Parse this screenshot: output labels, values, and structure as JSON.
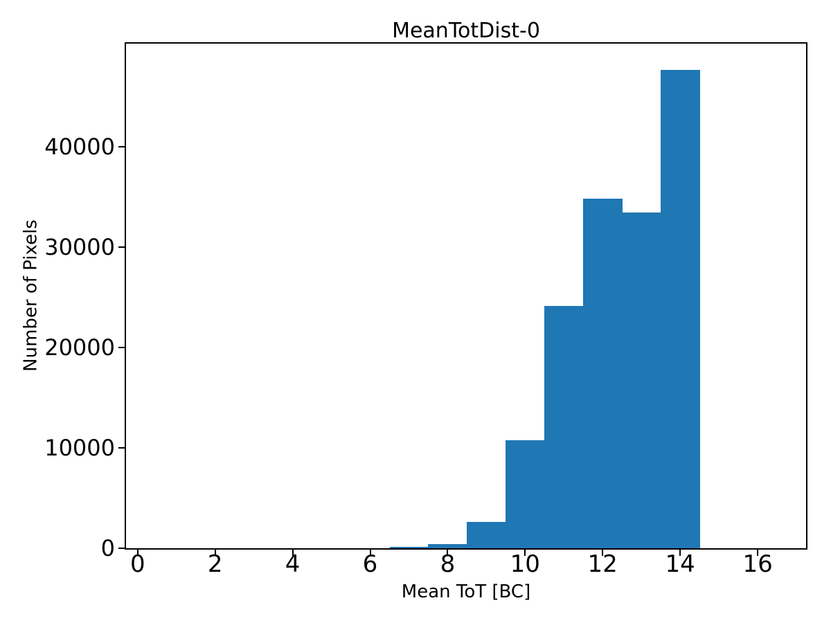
{
  "figure": {
    "background": "#ffffff",
    "axis_color": "#000000",
    "text_color": "#000000"
  },
  "chart_data": {
    "type": "bar",
    "subtype": "histogram",
    "title": "MeanTotDist-0",
    "xlabel": "Mean ToT [BC]",
    "ylabel": "Number of Pixels",
    "bar_color": "#1f77b4",
    "bin_centers": [
      1,
      2,
      3,
      4,
      5,
      6,
      7,
      8,
      9,
      10,
      11,
      12,
      13,
      14,
      15,
      16
    ],
    "bin_width": 1,
    "counts": [
      0,
      0,
      0,
      0,
      0,
      0,
      130,
      420,
      2650,
      10750,
      24100,
      34800,
      33450,
      47650,
      0,
      0
    ],
    "xlim": [
      -0.3,
      17.25
    ],
    "ylim": [
      0,
      50250
    ],
    "xticks": [
      0,
      2,
      4,
      6,
      8,
      10,
      12,
      14,
      16
    ],
    "yticks": [
      0,
      10000,
      20000,
      30000,
      40000
    ],
    "grid": false,
    "legend": "none"
  }
}
